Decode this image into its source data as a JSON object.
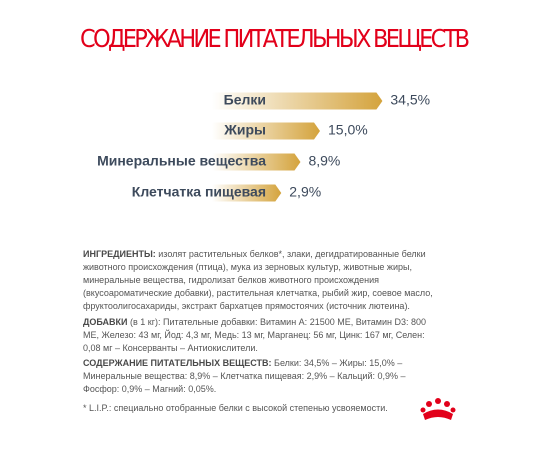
{
  "chart_data": {
    "type": "bar",
    "title": "СОДЕРЖАНИЕ ПИТАТЕЛЬНЫХ ВЕЩЕСТВ",
    "categories": [
      "Белки",
      "Жиры",
      "Минеральные вещества",
      "Клетчатка пищевая"
    ],
    "values": [
      34.5,
      15.0,
      8.9,
      2.9
    ],
    "value_labels": [
      "34,5%",
      "15,0%",
      "8,9%",
      "2,9%"
    ],
    "color": "#d4a33c",
    "orientation": "horizontal"
  },
  "ingredients": {
    "label": "ИНГРЕДИЕНТЫ:",
    "text": "изолят растительных белков*, злаки, дегидратированные белки животного происхождения (птица), мука из зерновых культур, животные жиры, минеральные вещества, гидролизат белков животного происхождения (вкусоароматические добавки), растительная клетчатка, рыбий жир, соевое масло, фруктоолигосахариды, экстракт бархатцев прямостоячих (источник лютеина)."
  },
  "additives": {
    "label": "ДОБАВКИ",
    "unit": "(в 1 кг):",
    "text": "Питательные добавки: Витамин A: 21500 МЕ, Витамин D3: 800 МЕ, Железо: 43 мг, Йод: 4,3 мг, Медь: 13 мг, Марганец: 56 мг, Цинк: 167 мг, Селен: 0,08 мг – Консерванты – Антиокислители."
  },
  "nutrients": {
    "label": "СОДЕРЖАНИЕ ПИТАТЕЛЬНЫХ ВЕЩЕСТВ:",
    "text": "Белки: 34,5% – Жиры: 15,0% – Минеральные вещества: 8,9% – Клетчатка пищевая: 2,9% – Кальций: 0,9% – Фосфор: 0,9% – Магний: 0,05%."
  },
  "footnote": "* L.I.P.: специально отобранные белки с высокой степенью усвояемости."
}
